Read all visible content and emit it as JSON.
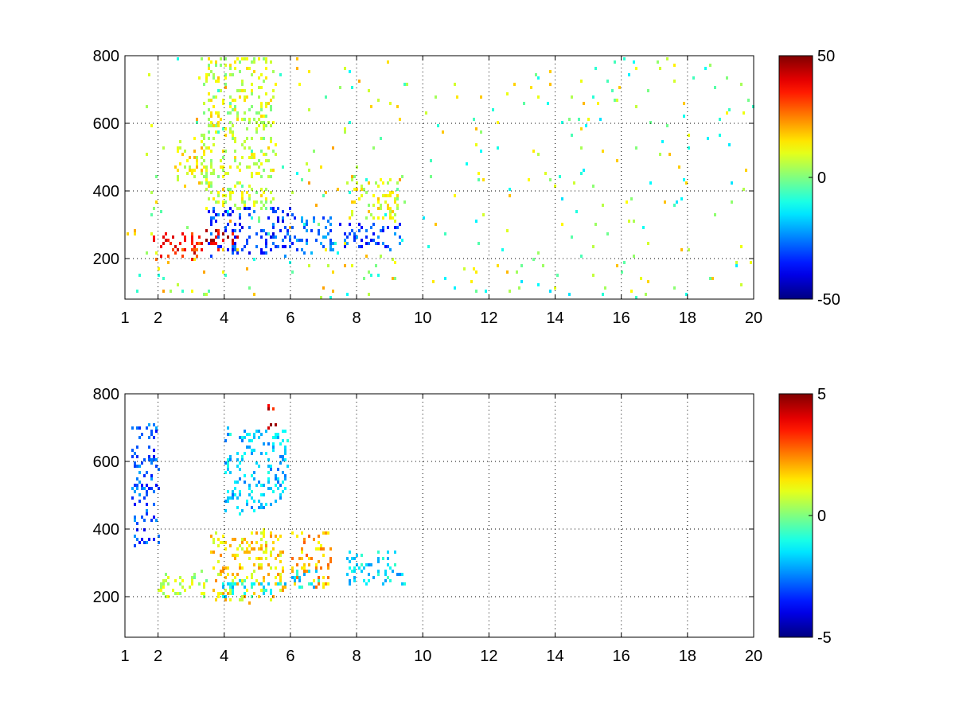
{
  "chart_data": [
    {
      "type": "heatmap",
      "title": "",
      "xlabel": "",
      "ylabel": "",
      "xlim": [
        1,
        20
      ],
      "ylim": [
        80,
        800
      ],
      "xticks": [
        "1",
        "2",
        "4",
        "6",
        "8",
        "10",
        "12",
        "14",
        "16",
        "18",
        "20"
      ],
      "yticks": [
        "200",
        "400",
        "600",
        "800"
      ],
      "grid": true,
      "colormap": "jet",
      "colorbar": {
        "min": -50,
        "max": 50,
        "ticks": [
          "50",
          "0",
          "-50"
        ]
      },
      "features": [
        {
          "x": [
            1.8,
            3.3
          ],
          "y": [
            200,
            290
          ],
          "value": 35
        },
        {
          "x": [
            3.3,
            4.6
          ],
          "y": [
            230,
            290
          ],
          "value": 40
        },
        {
          "x": [
            3.5,
            6.0
          ],
          "y": [
            210,
            360
          ],
          "value": -32
        },
        {
          "x": [
            6.0,
            7.3
          ],
          "y": [
            220,
            330
          ],
          "value": -28
        },
        {
          "x": [
            7.5,
            9.4
          ],
          "y": [
            230,
            310
          ],
          "value": -30
        },
        {
          "x": [
            2.5,
            3.5
          ],
          "y": [
            420,
            560
          ],
          "value": 12
        },
        {
          "x": [
            3.3,
            5.5
          ],
          "y": [
            350,
            800
          ],
          "value": 8
        },
        {
          "x": [
            7.7,
            9.4
          ],
          "y": [
            320,
            440
          ],
          "value": 10
        },
        {
          "x": [
            1.0,
            9.5
          ],
          "y": [
            80,
            800
          ],
          "value": 5
        },
        {
          "x": [
            10.0,
            20.0
          ],
          "y": [
            80,
            800
          ],
          "value": 2
        }
      ]
    },
    {
      "type": "heatmap",
      "title": "",
      "xlabel": "",
      "ylabel": "",
      "xlim": [
        1,
        20
      ],
      "ylim": [
        80,
        800
      ],
      "xticks": [
        "1",
        "2",
        "4",
        "6",
        "8",
        "10",
        "12",
        "14",
        "16",
        "18",
        "20"
      ],
      "yticks": [
        "200",
        "400",
        "600",
        "800"
      ],
      "grid": true,
      "colormap": "jet",
      "colorbar": {
        "min": -5,
        "max": 5,
        "ticks": [
          "5",
          "0",
          "-5"
        ]
      },
      "features": [
        {
          "x": [
            2.0,
            3.5
          ],
          "y": [
            200,
            280
          ],
          "value": 0.5
        },
        {
          "x": [
            3.5,
            5.8
          ],
          "y": [
            190,
            400
          ],
          "value": 1.5
        },
        {
          "x": [
            3.8,
            5.8
          ],
          "y": [
            200,
            250
          ],
          "value": -1.2
        },
        {
          "x": [
            6.0,
            7.2
          ],
          "y": [
            230,
            400
          ],
          "value": 2.0
        },
        {
          "x": [
            6.0,
            6.8
          ],
          "y": [
            210,
            280
          ],
          "value": -1.5
        },
        {
          "x": [
            7.7,
            9.4
          ],
          "y": [
            240,
            340
          ],
          "value": -1.5
        },
        {
          "x": [
            4.0,
            5.9
          ],
          "y": [
            450,
            700
          ],
          "value": -1.8
        },
        {
          "x": [
            5.3,
            5.5
          ],
          "y": [
            700,
            790
          ],
          "value": 4.0
        },
        {
          "x": [
            1.2,
            2.0
          ],
          "y": [
            350,
            720
          ],
          "value": -3.0
        }
      ]
    }
  ]
}
